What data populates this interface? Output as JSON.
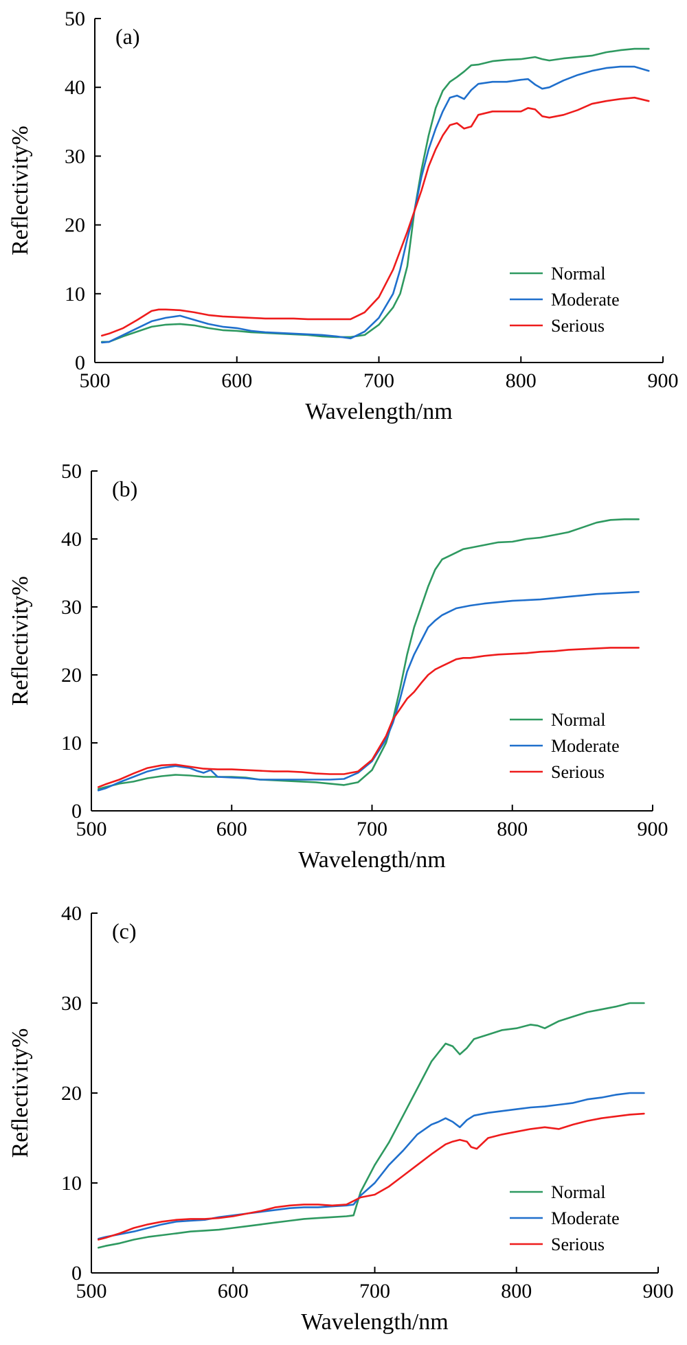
{
  "chart_data": [
    {
      "type": "line",
      "panel_label": "(a)",
      "xlabel": "Wavelength/nm",
      "ylabel": "Reflectivity%",
      "xlim": [
        500,
        900
      ],
      "ylim": [
        0,
        50
      ],
      "xticks": [
        500,
        600,
        700,
        800,
        900
      ],
      "yticks": [
        0,
        10,
        20,
        30,
        40,
        50
      ],
      "grid": false,
      "legend": "right-lower",
      "series": [
        {
          "name": "Normal",
          "color": "#2e9960",
          "x": [
            505,
            510,
            520,
            530,
            540,
            550,
            560,
            570,
            580,
            590,
            600,
            610,
            620,
            630,
            640,
            650,
            660,
            670,
            680,
            690,
            700,
            710,
            715,
            720,
            725,
            730,
            735,
            740,
            745,
            750,
            755,
            760,
            765,
            770,
            780,
            790,
            800,
            810,
            815,
            820,
            830,
            840,
            850,
            860,
            870,
            880,
            890
          ],
          "y": [
            3,
            3,
            3.8,
            4.5,
            5.2,
            5.5,
            5.6,
            5.4,
            5,
            4.7,
            4.6,
            4.4,
            4.3,
            4.2,
            4.1,
            4,
            3.8,
            3.7,
            3.7,
            4,
            5.5,
            8,
            10,
            14,
            22,
            28,
            33,
            37,
            39.5,
            40.8,
            41.5,
            42.3,
            43.2,
            43.3,
            43.8,
            44,
            44.1,
            44.4,
            44.1,
            43.9,
            44.2,
            44.4,
            44.6,
            45.1,
            45.4,
            45.6,
            45.6
          ]
        },
        {
          "name": "Moderate",
          "color": "#1f6fcc",
          "x": [
            505,
            510,
            520,
            530,
            540,
            550,
            560,
            570,
            580,
            590,
            600,
            610,
            620,
            630,
            640,
            650,
            660,
            670,
            680,
            690,
            700,
            710,
            715,
            720,
            725,
            730,
            735,
            740,
            745,
            750,
            755,
            760,
            765,
            770,
            780,
            790,
            800,
            805,
            810,
            815,
            820,
            830,
            840,
            850,
            860,
            870,
            880,
            890
          ],
          "y": [
            2.9,
            3,
            4,
            5,
            6,
            6.5,
            6.8,
            6.2,
            5.6,
            5.2,
            5,
            4.6,
            4.4,
            4.3,
            4.2,
            4.1,
            4,
            3.8,
            3.5,
            4.5,
            6.5,
            10,
            13.5,
            18,
            22,
            27,
            31,
            34,
            36.5,
            38.5,
            38.8,
            38.3,
            39.6,
            40.5,
            40.8,
            40.8,
            41.1,
            41.2,
            40.4,
            39.8,
            40,
            41,
            41.8,
            42.4,
            42.8,
            43,
            43,
            42.4
          ]
        },
        {
          "name": "Serious",
          "color": "#ee1c1c",
          "x": [
            505,
            510,
            520,
            530,
            540,
            545,
            550,
            560,
            570,
            580,
            590,
            600,
            610,
            620,
            630,
            640,
            650,
            660,
            670,
            680,
            690,
            700,
            710,
            720,
            725,
            730,
            735,
            740,
            745,
            750,
            755,
            760,
            765,
            770,
            780,
            790,
            800,
            805,
            810,
            815,
            820,
            830,
            840,
            850,
            860,
            870,
            880,
            890
          ],
          "y": [
            3.9,
            4.2,
            5,
            6.2,
            7.5,
            7.7,
            7.7,
            7.6,
            7.3,
            6.9,
            6.7,
            6.6,
            6.5,
            6.4,
            6.4,
            6.4,
            6.3,
            6.3,
            6.3,
            6.3,
            7.3,
            9.5,
            13.5,
            19,
            22,
            25,
            28.5,
            31,
            33,
            34.5,
            34.8,
            34,
            34.3,
            36,
            36.5,
            36.5,
            36.5,
            37,
            36.8,
            35.8,
            35.6,
            36,
            36.7,
            37.6,
            38,
            38.3,
            38.5,
            38
          ]
        }
      ]
    },
    {
      "type": "line",
      "panel_label": "(b)",
      "xlabel": "Wavelength/nm",
      "ylabel": "Reflectivity%",
      "xlim": [
        500,
        900
      ],
      "ylim": [
        0,
        50
      ],
      "xticks": [
        500,
        600,
        700,
        800,
        900
      ],
      "yticks": [
        0,
        10,
        20,
        30,
        40,
        50
      ],
      "grid": false,
      "legend": "right-lower",
      "series": [
        {
          "name": "Normal",
          "color": "#2e9960",
          "x": [
            505,
            510,
            520,
            530,
            540,
            550,
            560,
            570,
            580,
            590,
            600,
            610,
            620,
            630,
            640,
            650,
            660,
            670,
            680,
            690,
            700,
            710,
            715,
            720,
            725,
            730,
            735,
            740,
            745,
            750,
            755,
            760,
            765,
            770,
            780,
            790,
            800,
            810,
            820,
            830,
            840,
            850,
            860,
            870,
            880,
            890
          ],
          "y": [
            3.2,
            3.5,
            4,
            4.3,
            4.8,
            5.1,
            5.3,
            5.2,
            5,
            5,
            5,
            4.9,
            4.6,
            4.5,
            4.4,
            4.3,
            4.2,
            4,
            3.8,
            4.2,
            6,
            10,
            13.5,
            18,
            23,
            27,
            30,
            33,
            35.5,
            37,
            37.5,
            38,
            38.5,
            38.7,
            39.1,
            39.5,
            39.6,
            40,
            40.2,
            40.6,
            41,
            41.7,
            42.4,
            42.8,
            42.9,
            42.9
          ]
        },
        {
          "name": "Moderate",
          "color": "#1f6fcc",
          "x": [
            505,
            510,
            520,
            530,
            540,
            550,
            560,
            570,
            575,
            580,
            585,
            590,
            600,
            610,
            620,
            630,
            640,
            650,
            660,
            670,
            680,
            690,
            700,
            710,
            715,
            720,
            725,
            730,
            735,
            740,
            745,
            750,
            755,
            760,
            765,
            770,
            780,
            790,
            800,
            810,
            820,
            830,
            840,
            850,
            860,
            870,
            880,
            890
          ],
          "y": [
            3,
            3.3,
            4.2,
            5,
            5.8,
            6.3,
            6.6,
            6.3,
            5.9,
            5.6,
            6,
            5,
            4.9,
            4.8,
            4.6,
            4.6,
            4.6,
            4.6,
            4.6,
            4.6,
            4.7,
            5.6,
            7.3,
            10.5,
            13,
            16.5,
            20.5,
            23,
            25,
            27,
            28,
            28.8,
            29.3,
            29.8,
            30,
            30.2,
            30.5,
            30.7,
            30.9,
            31,
            31.1,
            31.3,
            31.5,
            31.7,
            31.9,
            32,
            32.1,
            32.2
          ]
        },
        {
          "name": "Serious",
          "color": "#ee1c1c",
          "x": [
            505,
            510,
            520,
            530,
            540,
            550,
            560,
            570,
            580,
            590,
            600,
            610,
            620,
            630,
            640,
            650,
            660,
            670,
            680,
            690,
            700,
            710,
            715,
            720,
            725,
            730,
            735,
            740,
            745,
            750,
            755,
            760,
            765,
            770,
            780,
            790,
            800,
            810,
            820,
            830,
            840,
            850,
            860,
            870,
            880,
            890
          ],
          "y": [
            3.5,
            3.9,
            4.6,
            5.5,
            6.3,
            6.7,
            6.8,
            6.5,
            6.2,
            6.1,
            6.1,
            6,
            5.9,
            5.8,
            5.8,
            5.7,
            5.5,
            5.4,
            5.4,
            5.8,
            7.5,
            11,
            13.5,
            15,
            16.5,
            17.5,
            18.8,
            20,
            20.8,
            21.3,
            21.8,
            22.3,
            22.5,
            22.5,
            22.8,
            23,
            23.1,
            23.2,
            23.4,
            23.5,
            23.7,
            23.8,
            23.9,
            24,
            24,
            24
          ]
        }
      ]
    },
    {
      "type": "line",
      "panel_label": "(c)",
      "xlabel": "Wavelength/nm",
      "ylabel": "Reflectivity%",
      "xlim": [
        500,
        900
      ],
      "ylim": [
        0,
        40
      ],
      "xticks": [
        500,
        600,
        700,
        800,
        900
      ],
      "yticks": [
        0,
        10,
        20,
        30,
        40
      ],
      "grid": false,
      "legend": "right-lower",
      "series": [
        {
          "name": "Normal",
          "color": "#2e9960",
          "x": [
            505,
            510,
            520,
            530,
            540,
            550,
            560,
            570,
            580,
            590,
            600,
            610,
            620,
            630,
            640,
            650,
            660,
            670,
            680,
            685,
            690,
            700,
            710,
            720,
            730,
            740,
            745,
            750,
            755,
            760,
            765,
            770,
            780,
            790,
            800,
            810,
            815,
            820,
            830,
            840,
            850,
            860,
            870,
            880,
            890
          ],
          "y": [
            2.8,
            3,
            3.3,
            3.7,
            4,
            4.2,
            4.4,
            4.6,
            4.7,
            4.8,
            5,
            5.2,
            5.4,
            5.6,
            5.8,
            6,
            6.1,
            6.2,
            6.3,
            6.4,
            9,
            12,
            14.5,
            17.5,
            20.5,
            23.5,
            24.5,
            25.5,
            25.2,
            24.3,
            25,
            26,
            26.5,
            27,
            27.2,
            27.6,
            27.5,
            27.2,
            28,
            28.5,
            29,
            29.3,
            29.6,
            30,
            30
          ]
        },
        {
          "name": "Moderate",
          "color": "#1f6fcc",
          "x": [
            505,
            510,
            520,
            530,
            540,
            550,
            560,
            570,
            580,
            590,
            600,
            610,
            620,
            630,
            640,
            650,
            660,
            670,
            680,
            685,
            690,
            700,
            710,
            720,
            730,
            740,
            745,
            750,
            755,
            760,
            765,
            770,
            780,
            790,
            800,
            810,
            820,
            830,
            840,
            850,
            860,
            870,
            880,
            890
          ],
          "y": [
            3.8,
            4,
            4.3,
            4.6,
            5,
            5.4,
            5.7,
            5.8,
            5.9,
            6.2,
            6.4,
            6.6,
            6.8,
            7,
            7.2,
            7.3,
            7.3,
            7.4,
            7.5,
            7.6,
            8.6,
            10,
            12,
            13.6,
            15.4,
            16.5,
            16.8,
            17.2,
            16.8,
            16.2,
            17,
            17.5,
            17.8,
            18,
            18.2,
            18.4,
            18.5,
            18.7,
            18.9,
            19.3,
            19.5,
            19.8,
            20,
            20
          ]
        },
        {
          "name": "Serious",
          "color": "#ee1c1c",
          "x": [
            505,
            510,
            520,
            530,
            540,
            550,
            560,
            570,
            580,
            590,
            600,
            610,
            620,
            630,
            640,
            650,
            660,
            670,
            680,
            690,
            700,
            710,
            720,
            730,
            740,
            750,
            755,
            760,
            765,
            768,
            772,
            780,
            790,
            800,
            810,
            820,
            830,
            840,
            850,
            860,
            870,
            880,
            890
          ],
          "y": [
            3.7,
            3.9,
            4.4,
            5,
            5.4,
            5.7,
            5.9,
            6,
            6,
            6.1,
            6.3,
            6.6,
            6.9,
            7.3,
            7.5,
            7.6,
            7.6,
            7.5,
            7.6,
            8.4,
            8.7,
            9.6,
            10.8,
            12,
            13.2,
            14.3,
            14.6,
            14.8,
            14.6,
            14,
            13.8,
            15,
            15.4,
            15.7,
            16,
            16.2,
            16,
            16.5,
            16.9,
            17.2,
            17.4,
            17.6,
            17.7
          ]
        }
      ]
    }
  ]
}
